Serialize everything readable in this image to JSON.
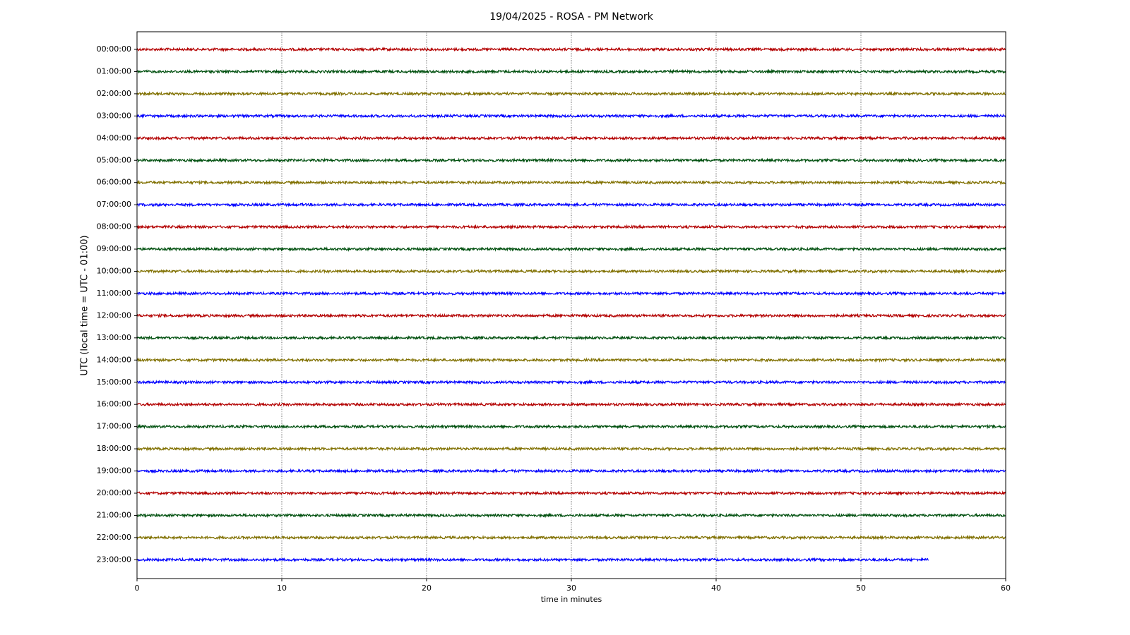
{
  "chart_data": {
    "type": "helicorder",
    "title": "19/04/2025 - ROSA - PM Network",
    "xlabel": "time in minutes",
    "ylabel": "UTC (local time = UTC - 01:00)",
    "xlim": [
      0,
      60
    ],
    "xticks": [
      0,
      10,
      20,
      30,
      40,
      50,
      60
    ],
    "grid": true,
    "colors": [
      "#b30000",
      "#00500f",
      "#807000",
      "#0000ff"
    ],
    "categories": [
      "00:00:00",
      "01:00:00",
      "02:00:00",
      "03:00:00",
      "04:00:00",
      "05:00:00",
      "06:00:00",
      "07:00:00",
      "08:00:00",
      "09:00:00",
      "10:00:00",
      "11:00:00",
      "12:00:00",
      "13:00:00",
      "14:00:00",
      "15:00:00",
      "16:00:00",
      "17:00:00",
      "18:00:00",
      "19:00:00",
      "20:00:00",
      "21:00:00",
      "22:00:00",
      "23:00:00"
    ],
    "values": [
      60,
      60,
      60,
      60,
      60,
      60,
      60,
      60,
      60,
      60,
      60,
      60,
      60,
      60,
      60,
      60,
      60,
      60,
      60,
      60,
      60,
      60,
      60,
      54.7
    ]
  }
}
